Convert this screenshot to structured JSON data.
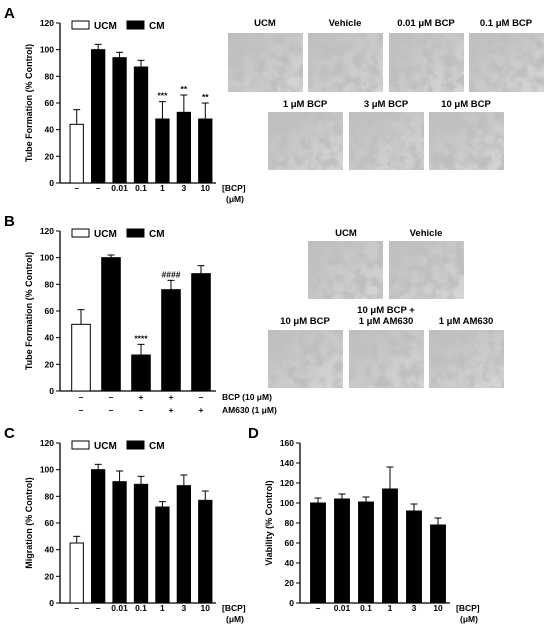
{
  "panels": [
    "A",
    "B",
    "C",
    "D"
  ],
  "chart_data": [
    {
      "type": "bar",
      "panel": "A",
      "ylabel": "Tube Formation (% Control)",
      "ylim": [
        0,
        120
      ],
      "yticks": [
        0,
        20,
        40,
        60,
        80,
        100,
        120
      ],
      "categories": [
        "–",
        "–",
        "0.01",
        "0.1",
        "1",
        "3",
        "10"
      ],
      "values": [
        44,
        100,
        94,
        87,
        48,
        53,
        48
      ],
      "errors": [
        11,
        4,
        4,
        5,
        13,
        13,
        12
      ],
      "colors": [
        "#ffffff",
        "#000000",
        "#000000",
        "#000000",
        "#000000",
        "#000000",
        "#000000"
      ],
      "significance": [
        "",
        "",
        "",
        "",
        "***",
        "**",
        "**"
      ],
      "xnote": [
        "[BCP]",
        "(μM)"
      ],
      "legend": [
        {
          "name": "UCM",
          "color": "#ffffff"
        },
        {
          "name": "CM",
          "color": "#000000"
        }
      ]
    },
    {
      "type": "bar",
      "panel": "B",
      "ylabel": "Tube Formation (% Control)",
      "ylim": [
        0,
        120
      ],
      "yticks": [
        0,
        20,
        40,
        60,
        80,
        100,
        120
      ],
      "categories": [
        "",
        "",
        "",
        "",
        ""
      ],
      "values": [
        50,
        100,
        27,
        76,
        88
      ],
      "errors": [
        11,
        2,
        8,
        7,
        6
      ],
      "colors": [
        "#ffffff",
        "#000000",
        "#000000",
        "#000000",
        "#000000"
      ],
      "significance": [
        "",
        "",
        "****",
        "####",
        ""
      ],
      "treatment_rows": [
        {
          "label": "BCP (10 μM)",
          "signs": [
            "–",
            "–",
            "+",
            "+",
            "–"
          ]
        },
        {
          "label": "AM630 (1 μM)",
          "signs": [
            "–",
            "–",
            "–",
            "+",
            "+"
          ]
        }
      ],
      "legend": [
        {
          "name": "UCM",
          "color": "#ffffff"
        },
        {
          "name": "CM",
          "color": "#000000"
        }
      ]
    },
    {
      "type": "bar",
      "panel": "C",
      "ylabel": "Migration (% Control)",
      "ylim": [
        0,
        120
      ],
      "yticks": [
        0,
        20,
        40,
        60,
        80,
        100,
        120
      ],
      "categories": [
        "–",
        "–",
        "0.01",
        "0.1",
        "1",
        "3",
        "10"
      ],
      "values": [
        45,
        100,
        91,
        89,
        72,
        88,
        77
      ],
      "errors": [
        5,
        4,
        8,
        6,
        4,
        8,
        7
      ],
      "colors": [
        "#ffffff",
        "#000000",
        "#000000",
        "#000000",
        "#000000",
        "#000000",
        "#000000"
      ],
      "significance": [
        "",
        "",
        "",
        "",
        "",
        "",
        ""
      ],
      "xnote": [
        "[BCP]",
        "(μM)"
      ],
      "legend": [
        {
          "name": "UCM",
          "color": "#ffffff"
        },
        {
          "name": "CM",
          "color": "#000000"
        }
      ]
    },
    {
      "type": "bar",
      "panel": "D",
      "ylabel": "Viability (% Control)",
      "ylim": [
        0,
        160
      ],
      "yticks": [
        0,
        20,
        40,
        60,
        80,
        100,
        120,
        140,
        160
      ],
      "categories": [
        "–",
        "0.01",
        "0.1",
        "1",
        "3",
        "10"
      ],
      "values": [
        100,
        104,
        101,
        114,
        92,
        78
      ],
      "errors": [
        5,
        5,
        5,
        22,
        7,
        7
      ],
      "colors": [
        "#000000",
        "#000000",
        "#000000",
        "#000000",
        "#000000",
        "#000000"
      ],
      "significance": [
        "",
        "",
        "",
        "",
        "",
        ""
      ],
      "xnote": [
        "[BCP]",
        "(μM)"
      ]
    }
  ],
  "micrographs": {
    "A": [
      "UCM",
      "Vehicle",
      "0.01 μM BCP",
      "0.1 μM BCP",
      "1 μM BCP",
      "3 μM BCP",
      "10 μM BCP"
    ],
    "B": [
      "UCM",
      "Vehicle",
      "10 μM BCP",
      "10 μM BCP +",
      "1 μM AM630",
      "1 μM AM630"
    ]
  }
}
